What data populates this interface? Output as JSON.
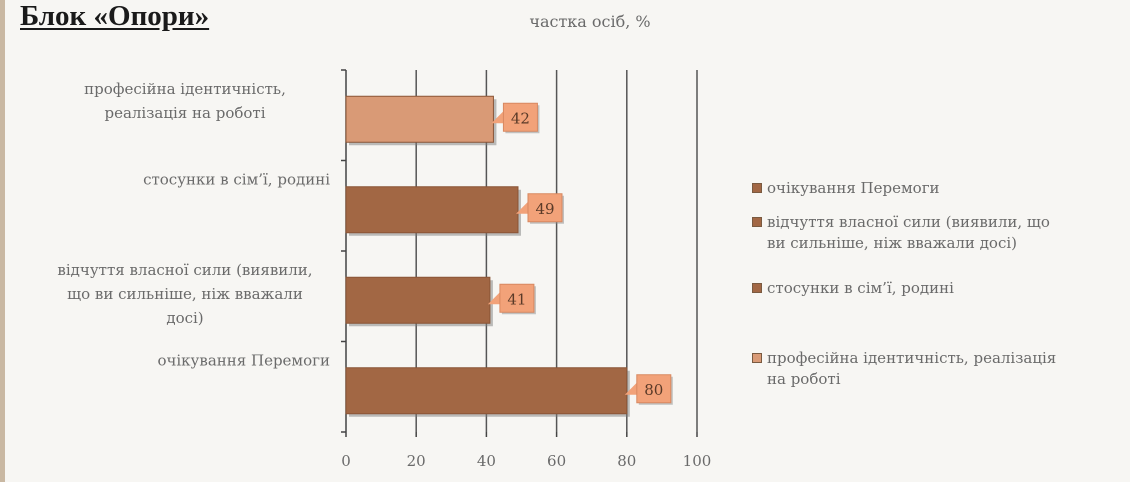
{
  "header": {
    "title": "Блок «Опори»"
  },
  "chart_data": {
    "type": "bar",
    "orientation": "horizontal",
    "title": "частка осіб, %",
    "xlabel": "",
    "ylabel": "",
    "xlim": [
      0,
      100
    ],
    "x_ticks": [
      "0",
      "20",
      "40",
      "60",
      "80",
      "100"
    ],
    "grid": "vertical major gridlines",
    "legend_position": "right",
    "series": [
      {
        "name": "очікування Перемоги",
        "category": "очікування Перемоги",
        "value": 80,
        "label": "80",
        "color": "#a26744"
      },
      {
        "name": "відчуття власної сили (виявили, що ви сильніше, ніж вважали досі)",
        "category": "відчуття власної сили (виявили, що ви сильніше, ніж вважали досі)",
        "value": 41,
        "label": "41",
        "color": "#a26744"
      },
      {
        "name": "стосунки в сім'ї, родині",
        "category": "стосунки в сім'ї, родині",
        "value": 49,
        "label": "49",
        "color": "#a26744"
      },
      {
        "name": "професійна ідентичність, реалізація на роботі",
        "category": "професійна ідентичність, реалізація на роботі",
        "value": 42,
        "label": "42",
        "color": "#d99a76"
      }
    ],
    "label_box_color": "#f2a279"
  }
}
